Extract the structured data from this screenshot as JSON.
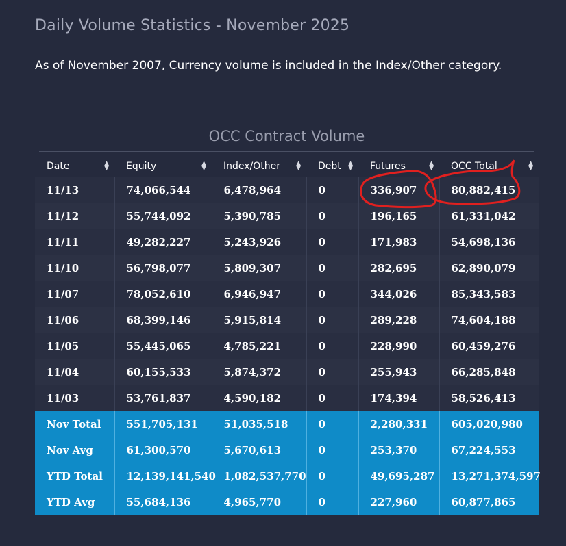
{
  "page": {
    "title": "Daily Volume Statistics - November 2025",
    "note": "As of November 2007, Currency volume is included in the Index/Other category."
  },
  "table": {
    "caption": "OCC Contract Volume",
    "columns": [
      "Date",
      "Equity",
      "Index/Other",
      "Debt",
      "Futures",
      "OCC Total"
    ],
    "rows": [
      [
        "11/13",
        "74,066,544",
        "6,478,964",
        "0",
        "336,907",
        "80,882,415"
      ],
      [
        "11/12",
        "55,744,092",
        "5,390,785",
        "0",
        "196,165",
        "61,331,042"
      ],
      [
        "11/11",
        "49,282,227",
        "5,243,926",
        "0",
        "171,983",
        "54,698,136"
      ],
      [
        "11/10",
        "56,798,077",
        "5,809,307",
        "0",
        "282,695",
        "62,890,079"
      ],
      [
        "11/07",
        "78,052,610",
        "6,946,947",
        "0",
        "344,026",
        "85,343,583"
      ],
      [
        "11/06",
        "68,399,146",
        "5,915,814",
        "0",
        "289,228",
        "74,604,188"
      ],
      [
        "11/05",
        "55,445,065",
        "4,785,221",
        "0",
        "228,990",
        "60,459,276"
      ],
      [
        "11/04",
        "60,155,533",
        "5,874,372",
        "0",
        "255,943",
        "66,285,848"
      ],
      [
        "11/03",
        "53,761,837",
        "4,590,182",
        "0",
        "174,394",
        "58,526,413"
      ]
    ],
    "summary_rows": [
      [
        "Nov Total",
        "551,705,131",
        "51,035,518",
        "0",
        "2,280,331",
        "605,020,980"
      ],
      [
        "Nov Avg",
        "61,300,570",
        "5,670,613",
        "0",
        "253,370",
        "67,224,553"
      ],
      [
        "YTD Total",
        "12,139,141,540",
        "1,082,537,770",
        "0",
        "49,695,287",
        "13,271,374,597"
      ],
      [
        "YTD Avg",
        "55,684,136",
        "4,965,770",
        "0",
        "227,960",
        "60,877,865"
      ]
    ]
  },
  "colors": {
    "background": "#252a3d",
    "summary_row": "#0f8bc8",
    "annotation": "#e0201f"
  },
  "icons": {
    "sort": "sort-arrows-icon"
  }
}
